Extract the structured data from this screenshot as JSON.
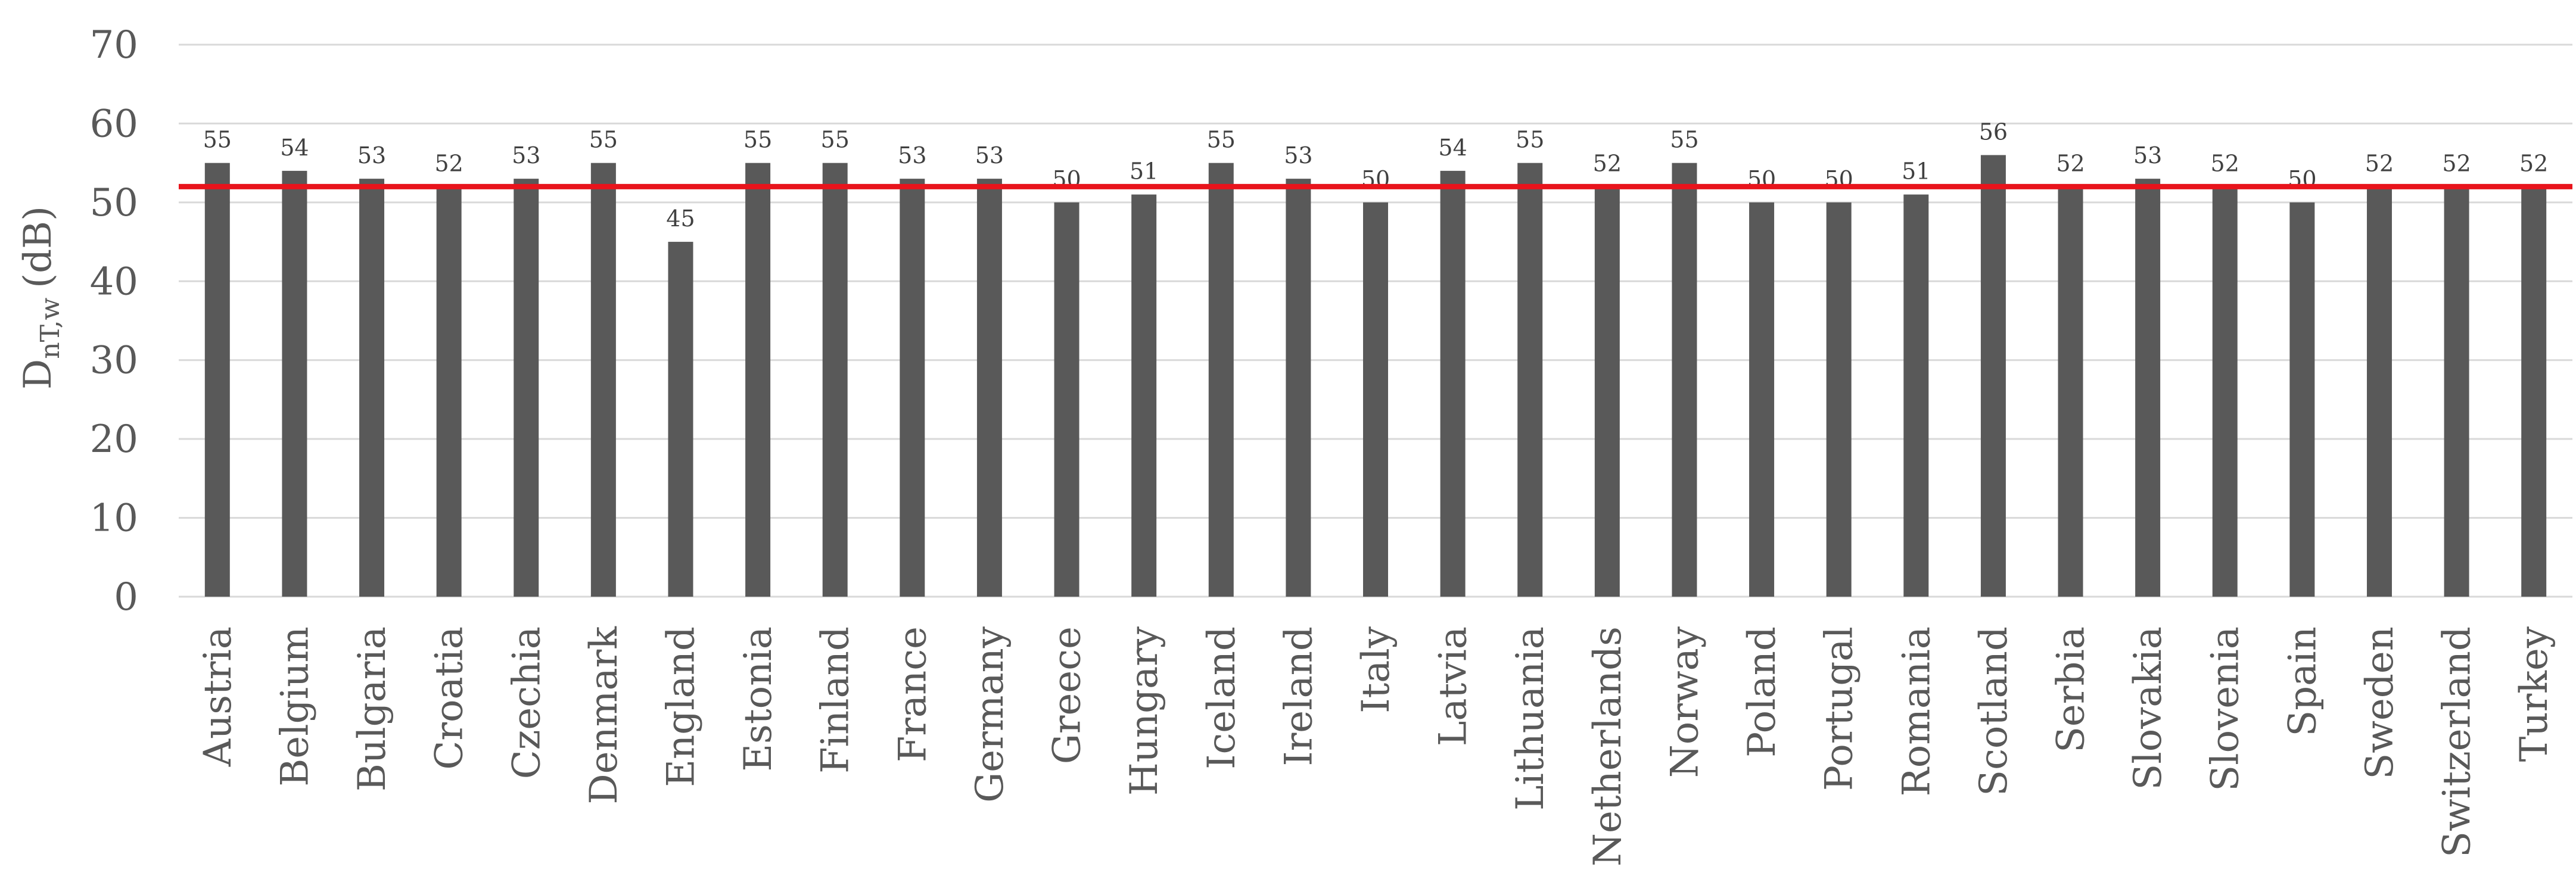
{
  "chart_data": {
    "type": "bar",
    "title": "",
    "xlabel": "",
    "ylabel": {
      "main": "D",
      "subscript": "nT,w",
      "unit": "(dB)"
    },
    "ylim": [
      0,
      70
    ],
    "yticks": [
      0,
      10,
      20,
      30,
      40,
      50,
      60,
      70
    ],
    "grid": true,
    "legend": "none",
    "categories": [
      "Austria",
      "Belgium",
      "Bulgaria",
      "Croatia",
      "Czechia",
      "Denmark",
      "England",
      "Estonia",
      "Finland",
      "France",
      "Germany",
      "Greece",
      "Hungary",
      "Iceland",
      "Ireland",
      "Italy",
      "Latvia",
      "Lithuania",
      "Netherlands",
      "Norway",
      "Poland",
      "Portugal",
      "Romania",
      "Scotland",
      "Serbia",
      "Slovakia",
      "Slovenia",
      "Spain",
      "Sweden",
      "Switzerland",
      "Turkey"
    ],
    "values": [
      55,
      54,
      53,
      52,
      53,
      55,
      45,
      55,
      55,
      53,
      53,
      50,
      51,
      55,
      53,
      50,
      54,
      55,
      52,
      55,
      50,
      50,
      51,
      56,
      52,
      53,
      52,
      50,
      52,
      52,
      52
    ],
    "reference_line": {
      "value": 52,
      "color": "#e8141c"
    },
    "colors": {
      "bar": "#595959",
      "grid": "#d9d9d9",
      "text": "#595959"
    }
  }
}
